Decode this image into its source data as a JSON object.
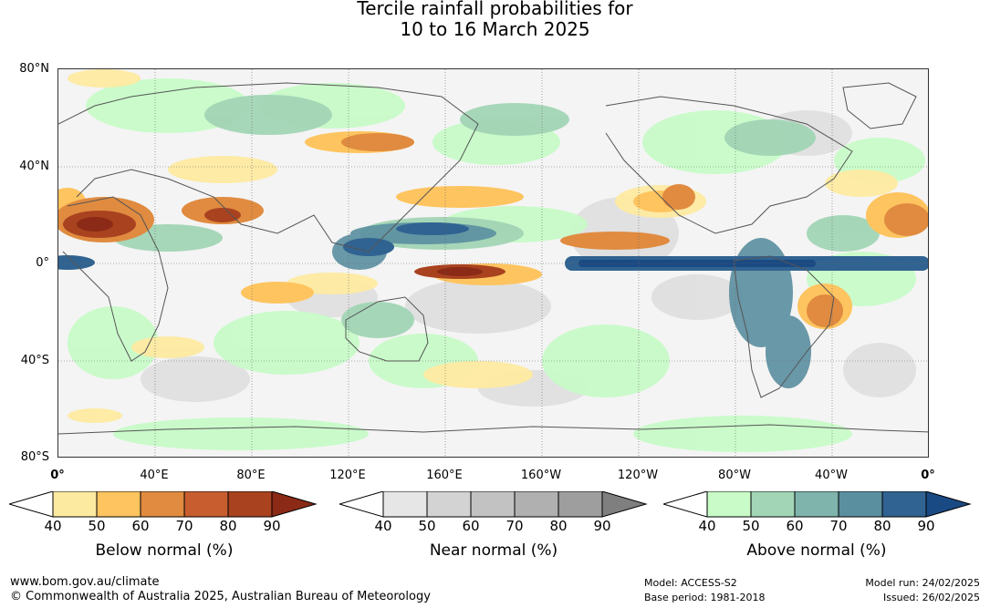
{
  "title_line1": "Tercile rainfall probabilities for",
  "title_line2": "10 to 16 March 2025",
  "lat_labels": [
    "80°N",
    "40°N",
    "0°",
    "40°S",
    "80°S"
  ],
  "lon_labels": [
    "0°",
    "40°E",
    "80°E",
    "120°E",
    "160°E",
    "160°W",
    "120°W",
    "80°W",
    "40°W",
    "0°"
  ],
  "colorbars": [
    {
      "title": "Below normal (%)",
      "ticks": [
        "40",
        "50",
        "60",
        "70",
        "80",
        "90"
      ],
      "colors": [
        "#ffffff",
        "#fdeaa1",
        "#fec45f",
        "#e08b40",
        "#c85e2f",
        "#a9421f",
        "#8b2a16"
      ]
    },
    {
      "title": "Near normal (%)",
      "ticks": [
        "40",
        "50",
        "60",
        "70",
        "80",
        "90"
      ],
      "colors": [
        "#ffffff",
        "#e6e6e6",
        "#d3d3d3",
        "#c2c2c2",
        "#b0b0b0",
        "#9e9e9e",
        "#7f7f7f"
      ]
    },
    {
      "title": "Above normal (%)",
      "ticks": [
        "40",
        "50",
        "60",
        "70",
        "80",
        "90"
      ],
      "colors": [
        "#ffffff",
        "#c8fbc8",
        "#a2d5b5",
        "#7fb4ad",
        "#5a8fa0",
        "#306391",
        "#1a4a83"
      ]
    }
  ],
  "footer": {
    "website": "www.bom.gov.au/climate",
    "copyright": "© Commonwealth of Australia 2025, Australian Bureau of Meteorology",
    "model": "Model: ACCESS-S2",
    "base_period": "Base period: 1981-2018",
    "model_run": "Model run: 24/02/2025",
    "issued": "Issued: 26/02/2025"
  }
}
